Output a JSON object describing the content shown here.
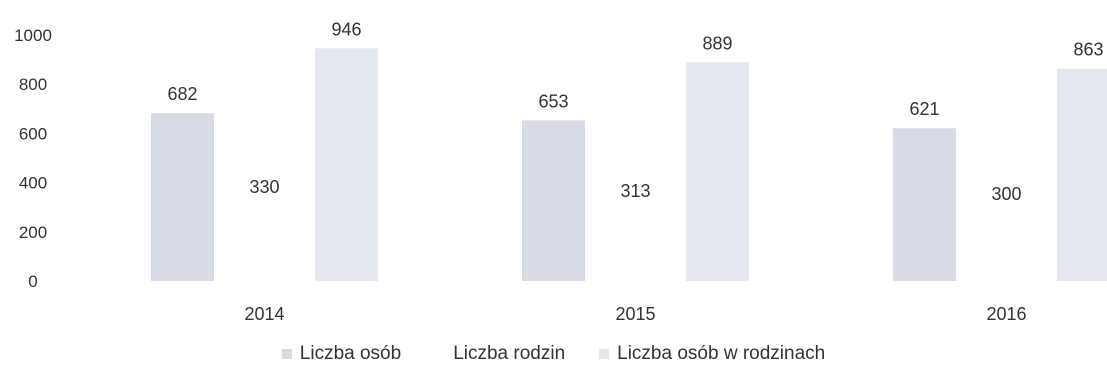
{
  "chart_data": {
    "type": "bar",
    "categories": [
      "2014",
      "2015",
      "2016"
    ],
    "series": [
      {
        "name": "Liczba osób",
        "values": [
          682,
          653,
          621
        ],
        "color": "#d7dbe6"
      },
      {
        "name": "Liczba rodzin",
        "values": [
          330,
          313,
          300
        ],
        "color": "#ffffff"
      },
      {
        "name": "Liczba osób w rodzinach",
        "values": [
          946,
          889,
          863
        ],
        "color": "#e3e7ef"
      }
    ],
    "yticks": [
      "0",
      "200",
      "400",
      "600",
      "800",
      "1000"
    ],
    "ylim": [
      0,
      1000
    ],
    "title": "",
    "xlabel": "",
    "ylabel": "",
    "grid": false,
    "legend_position": "bottom"
  }
}
